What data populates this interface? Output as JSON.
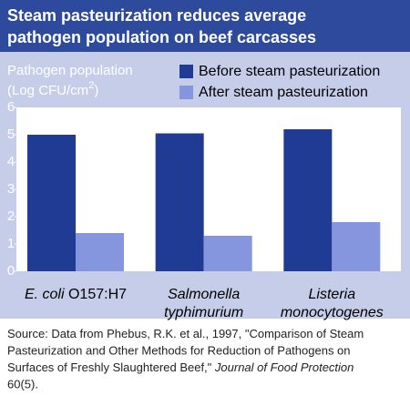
{
  "chart_data": {
    "type": "bar",
    "title": [
      "Steam pasteurization reduces average",
      "pathogen population on beef carcasses"
    ],
    "y_label": [
      "Pathogen population",
      "(Log CFU/cm",
      "2",
      ")"
    ],
    "categories": [
      "E. coli O157:H7",
      "Salmonella typhimurium",
      "Listeria monocytogenes"
    ],
    "series": [
      {
        "name": "Before steam pasteurization",
        "color": "#1f3b94",
        "values": [
          5.0,
          5.05,
          5.2
        ]
      },
      {
        "name": "After steam pasteurization",
        "color": "#8595de",
        "values": [
          1.4,
          1.3,
          1.8
        ]
      }
    ],
    "ylim": [
      0,
      6
    ],
    "yticks": [
      0,
      1,
      2,
      3,
      4,
      5,
      6
    ],
    "grid": false
  },
  "source": [
    [
      {
        "text": "Source: Data from Phebus, R.K. et al., 1997, \"Comparison of Steam",
        "italic": false
      }
    ],
    [
      {
        "text": "Pasteurization and Other Methods for Reduction of Pathogens on",
        "italic": false
      }
    ],
    [
      {
        "text": "Surfaces of Freshly Slaughtered Beef,\" ",
        "italic": false
      },
      {
        "text": "Journal of Food Protection",
        "italic": true
      }
    ],
    [
      {
        "text": "60(5).",
        "italic": false
      }
    ]
  ]
}
